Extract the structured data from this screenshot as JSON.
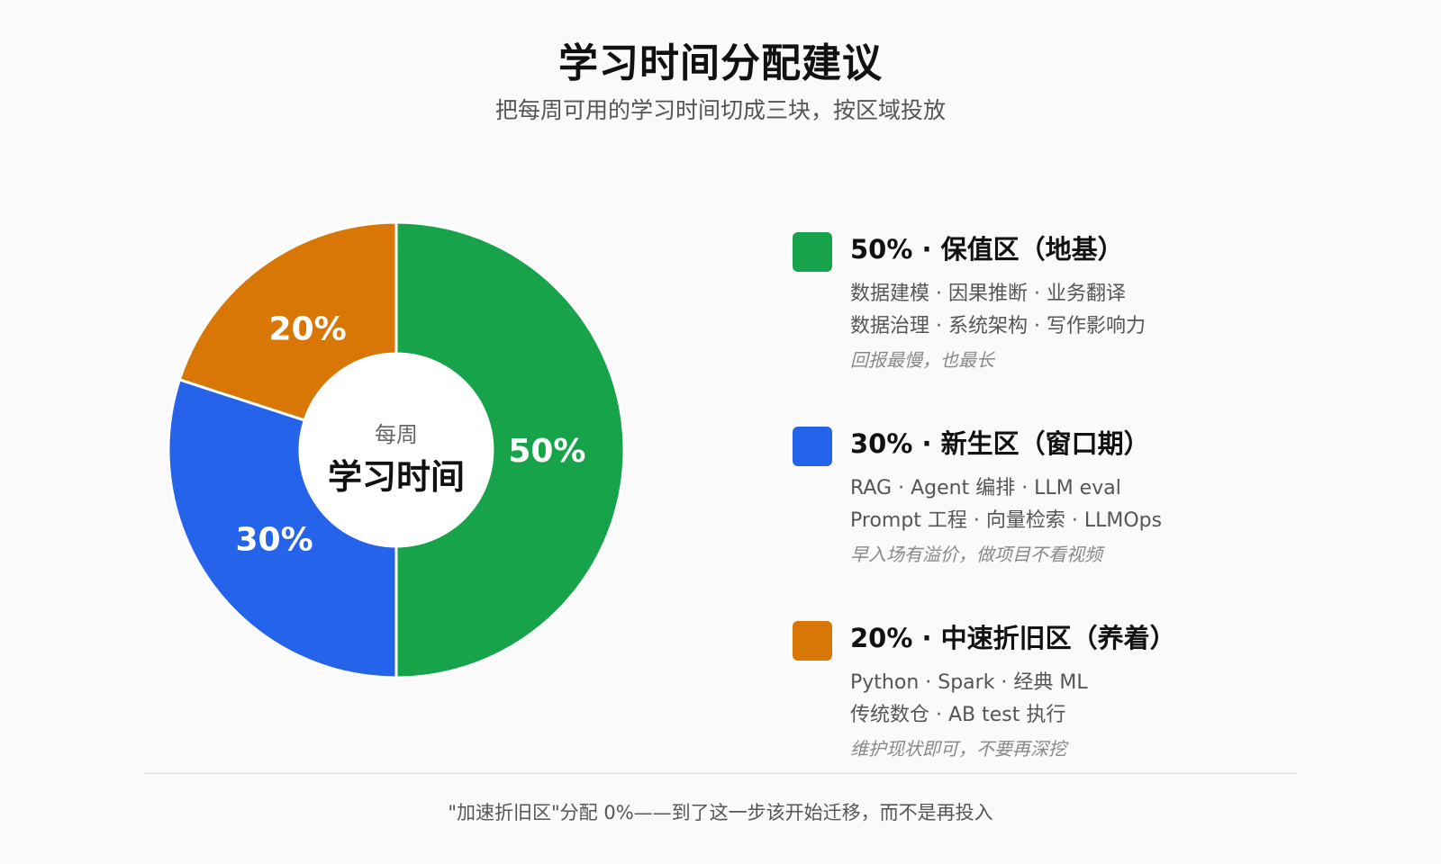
{
  "title": "学习时间分配建议",
  "subtitle": "把每周可用的学习时间切成三块，按区域投放",
  "chart_data": {
    "type": "pie",
    "style": "donut",
    "center_label_top": "每周",
    "center_label_main": "学习时间",
    "slices": [
      {
        "label": "50%",
        "value": 50,
        "color": "#16a34a"
      },
      {
        "label": "30%",
        "value": 30,
        "color": "#2563eb"
      },
      {
        "label": "20%",
        "value": 20,
        "color": "#d97706"
      }
    ]
  },
  "legend": [
    {
      "color": "#16a34a",
      "heading": "50% · 保值区（地基）",
      "line1": "数据建模 · 因果推断 · 业务翻译",
      "line2": "数据治理 · 系统架构 · 写作影响力",
      "note": "回报最慢，也最长"
    },
    {
      "color": "#2563eb",
      "heading": "30% · 新生区（窗口期）",
      "line1": "RAG · Agent 编排 · LLM eval",
      "line2": "Prompt 工程 · 向量检索 · LLMOps",
      "note": "早入场有溢价，做项目不看视频"
    },
    {
      "color": "#d97706",
      "heading": "20% · 中速折旧区（养着）",
      "line1": "Python · Spark · 经典 ML",
      "line2": "传统数仓 · AB test 执行",
      "note": "维护现状即可，不要再深挖"
    }
  ],
  "footer": "\"加速折旧区\"分配 0%——到了这一步该开始迁移，而不是再投入"
}
